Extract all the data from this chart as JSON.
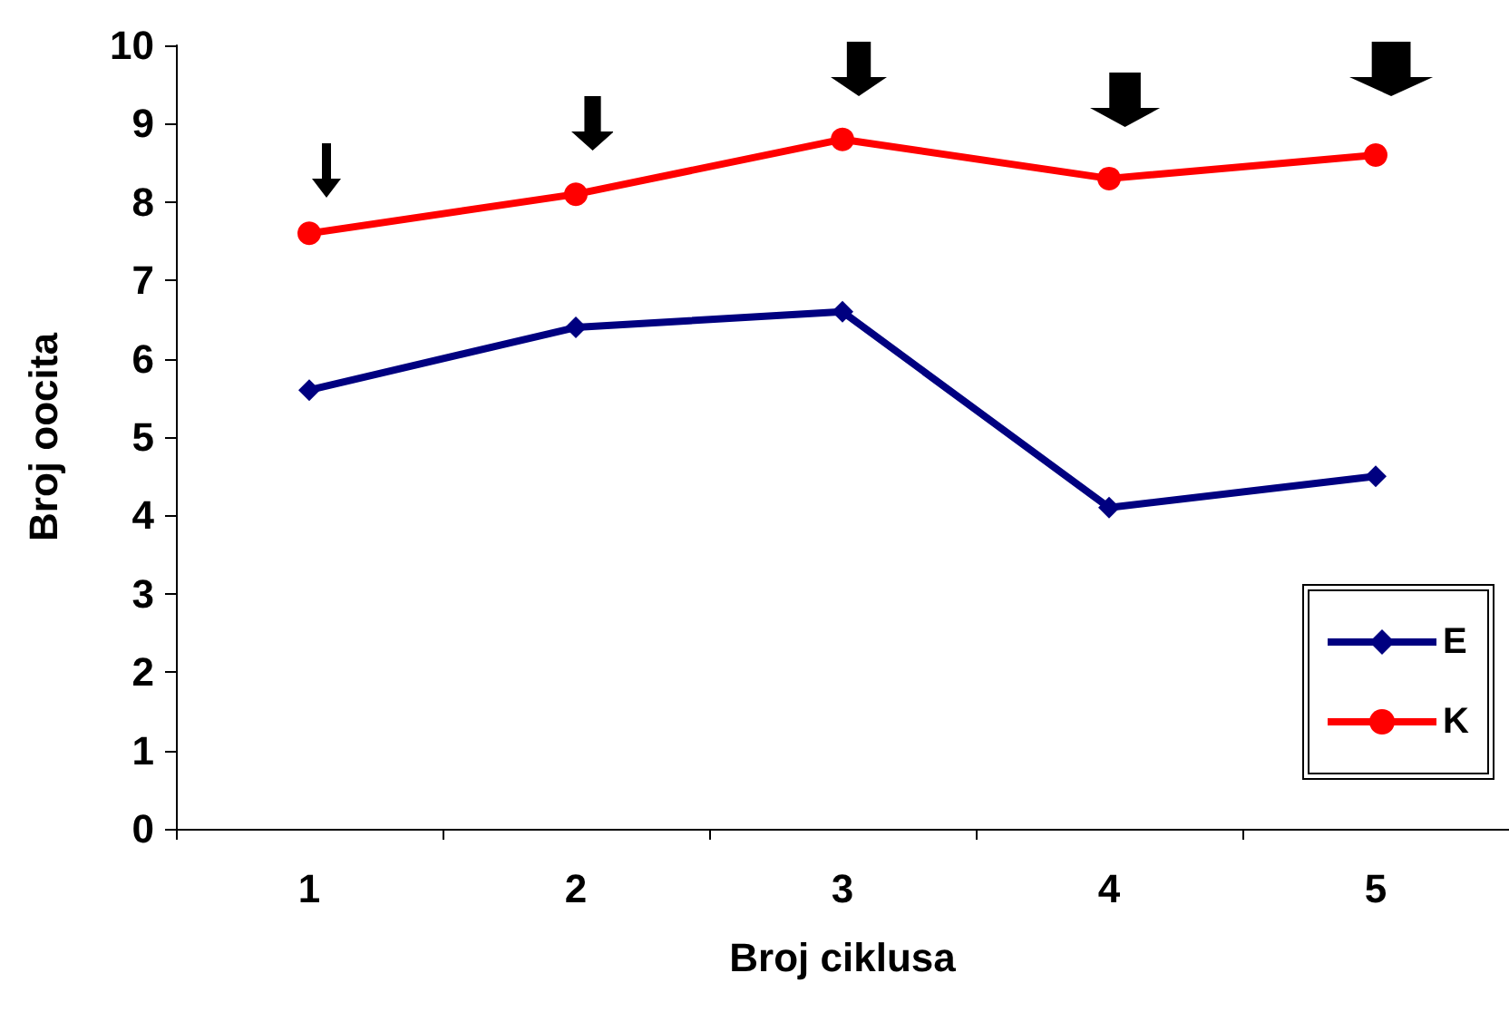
{
  "chart_data": {
    "type": "line",
    "xlabel": "Broj ciklusa",
    "ylabel": "Broj oocita",
    "categories": [
      "1",
      "2",
      "3",
      "4",
      "5"
    ],
    "series": [
      {
        "name": "E",
        "color": "#000080",
        "marker": "diamond",
        "values": [
          5.6,
          6.4,
          6.6,
          4.1,
          4.5
        ]
      },
      {
        "name": "K",
        "color": "#ff0000",
        "marker": "circle",
        "values": [
          7.6,
          8.1,
          8.8,
          8.3,
          8.6
        ]
      }
    ],
    "ylim": [
      0,
      10
    ],
    "yticks": [
      0,
      1,
      2,
      3,
      4,
      5,
      6,
      7,
      8,
      9,
      10
    ],
    "grid": false,
    "legend": "bottom right",
    "line_style": "solid"
  }
}
